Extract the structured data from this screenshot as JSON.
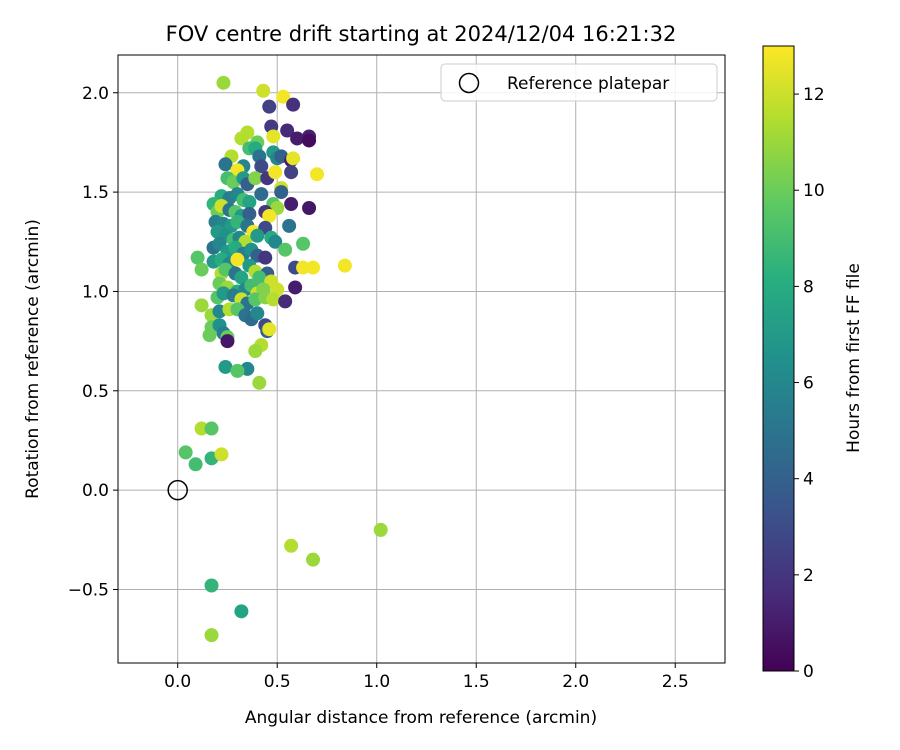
{
  "chart_data": {
    "type": "scatter",
    "title": "FOV centre drift starting at 2024/12/04 16:21:32",
    "xlabel": "Angular distance from reference (arcmin)",
    "ylabel": "Rotation from reference (arcmin)",
    "xlim": [
      -0.3,
      2.75
    ],
    "ylim": [
      -0.87,
      2.19
    ],
    "xticks": [
      0.0,
      0.5,
      1.0,
      1.5,
      2.0,
      2.5
    ],
    "xtick_labels": [
      "0.0",
      "0.5",
      "1.0",
      "1.5",
      "2.0",
      "2.5"
    ],
    "yticks": [
      -0.5,
      0.0,
      0.5,
      1.0,
      1.5,
      2.0
    ],
    "ytick_labels": [
      "−0.5",
      "0.0",
      "0.5",
      "1.0",
      "1.5",
      "2.0"
    ],
    "grid": true,
    "legend": {
      "placement": "upper right",
      "entries": [
        "Reference platepar"
      ]
    },
    "colorbar": {
      "label": "Hours from first FF file",
      "colormap": "viridis",
      "range": [
        0,
        13
      ],
      "ticks": [
        0,
        2,
        4,
        6,
        8,
        10,
        12
      ],
      "tick_labels": [
        "0",
        "2",
        "4",
        "6",
        "8",
        "10",
        "12"
      ]
    },
    "reference": {
      "x": 0.0,
      "y": 0.0
    },
    "series": [
      {
        "points": [
          [
            0.23,
            2.05,
            11.0
          ],
          [
            0.43,
            2.01,
            12.0
          ],
          [
            0.53,
            1.98,
            12.8
          ],
          [
            0.46,
            1.93,
            2.5
          ],
          [
            0.58,
            1.94,
            1.8
          ],
          [
            0.47,
            1.83,
            2.2
          ],
          [
            0.55,
            1.81,
            1.5
          ],
          [
            0.6,
            1.77,
            1.0
          ],
          [
            0.66,
            1.78,
            1.2
          ],
          [
            0.66,
            1.76,
            0.4
          ],
          [
            0.48,
            1.78,
            12.5
          ],
          [
            0.4,
            1.75,
            10.0
          ],
          [
            0.32,
            1.77,
            11.5
          ],
          [
            0.35,
            1.8,
            11.5
          ],
          [
            0.36,
            1.72,
            9.0
          ],
          [
            0.39,
            1.72,
            8.0
          ],
          [
            0.41,
            1.68,
            5.0
          ],
          [
            0.48,
            1.7,
            7.0
          ],
          [
            0.5,
            1.67,
            6.0
          ],
          [
            0.52,
            1.68,
            4.0
          ],
          [
            0.57,
            1.66,
            1.0
          ],
          [
            0.58,
            1.67,
            12.5
          ],
          [
            0.42,
            1.63,
            3.0
          ],
          [
            0.33,
            1.63,
            6.0
          ],
          [
            0.27,
            1.68,
            11.5
          ],
          [
            0.24,
            1.64,
            5.0
          ],
          [
            0.3,
            1.61,
            12.8
          ],
          [
            0.25,
            1.57,
            9.0
          ],
          [
            0.28,
            1.55,
            10.0
          ],
          [
            0.33,
            1.57,
            7.0
          ],
          [
            0.35,
            1.54,
            4.0
          ],
          [
            0.39,
            1.57,
            10.5
          ],
          [
            0.45,
            1.57,
            2.0
          ],
          [
            0.49,
            1.6,
            12.8
          ],
          [
            0.57,
            1.6,
            2.5
          ],
          [
            0.7,
            1.59,
            12.8
          ],
          [
            0.52,
            1.52,
            12.0
          ],
          [
            0.52,
            1.5,
            4.0
          ],
          [
            0.22,
            1.48,
            8.0
          ],
          [
            0.26,
            1.47,
            5.5
          ],
          [
            0.3,
            1.49,
            6.0
          ],
          [
            0.33,
            1.46,
            9.0
          ],
          [
            0.36,
            1.45,
            7.5
          ],
          [
            0.42,
            1.49,
            4.5
          ],
          [
            0.48,
            1.44,
            9.5
          ],
          [
            0.5,
            1.42,
            11.0
          ],
          [
            0.57,
            1.44,
            1.0
          ],
          [
            0.66,
            1.42,
            0.8
          ],
          [
            0.18,
            1.44,
            8.5
          ],
          [
            0.2,
            1.4,
            10.0
          ],
          [
            0.22,
            1.43,
            12.0
          ],
          [
            0.26,
            1.41,
            5.0
          ],
          [
            0.29,
            1.4,
            9.5
          ],
          [
            0.32,
            1.38,
            7.0
          ],
          [
            0.36,
            1.39,
            4.0
          ],
          [
            0.44,
            1.4,
            2.0
          ],
          [
            0.46,
            1.38,
            12.8
          ],
          [
            0.19,
            1.35,
            5.5
          ],
          [
            0.23,
            1.34,
            6.0
          ],
          [
            0.27,
            1.33,
            7.0
          ],
          [
            0.3,
            1.35,
            8.5
          ],
          [
            0.35,
            1.33,
            5.0
          ],
          [
            0.38,
            1.3,
            12.8
          ],
          [
            0.44,
            1.32,
            3.0
          ],
          [
            0.56,
            1.33,
            5.0
          ],
          [
            0.2,
            1.3,
            7.0
          ],
          [
            0.24,
            1.28,
            6.5
          ],
          [
            0.28,
            1.26,
            9.0
          ],
          [
            0.31,
            1.27,
            6.0
          ],
          [
            0.34,
            1.25,
            11.5
          ],
          [
            0.4,
            1.28,
            7.0
          ],
          [
            0.47,
            1.27,
            8.0
          ],
          [
            0.49,
            1.25,
            6.0
          ],
          [
            0.54,
            1.21,
            9.5
          ],
          [
            0.63,
            1.24,
            9.5
          ],
          [
            0.18,
            1.22,
            5.0
          ],
          [
            0.21,
            1.24,
            6.0
          ],
          [
            0.25,
            1.2,
            7.0
          ],
          [
            0.29,
            1.22,
            8.0
          ],
          [
            0.33,
            1.19,
            5.5
          ],
          [
            0.37,
            1.21,
            6.5
          ],
          [
            0.4,
            1.18,
            4.0
          ],
          [
            0.44,
            1.17,
            2.0
          ],
          [
            0.59,
            1.12,
            3.0
          ],
          [
            0.63,
            1.12,
            12.8
          ],
          [
            0.68,
            1.12,
            12.8
          ],
          [
            0.84,
            1.13,
            12.8
          ],
          [
            0.1,
            1.17,
            9.5
          ],
          [
            0.12,
            1.11,
            10.0
          ],
          [
            0.18,
            1.15,
            7.0
          ],
          [
            0.22,
            1.16,
            8.0
          ],
          [
            0.26,
            1.14,
            6.0
          ],
          [
            0.3,
            1.16,
            12.8
          ],
          [
            0.36,
            1.13,
            7.0
          ],
          [
            0.39,
            1.1,
            11.5
          ],
          [
            0.45,
            1.09,
            4.0
          ],
          [
            0.22,
            1.09,
            11.5
          ],
          [
            0.24,
            1.11,
            9.5
          ],
          [
            0.29,
            1.09,
            5.0
          ],
          [
            0.32,
            1.07,
            7.5
          ],
          [
            0.41,
            1.07,
            9.0
          ],
          [
            0.47,
            1.05,
            12.0
          ],
          [
            0.21,
            1.04,
            10.0
          ],
          [
            0.25,
            1.02,
            11.0
          ],
          [
            0.3,
            1.0,
            8.0
          ],
          [
            0.34,
            1.01,
            6.0
          ],
          [
            0.37,
            1.03,
            9.0
          ],
          [
            0.4,
            0.99,
            12.0
          ],
          [
            0.43,
            1.01,
            10.5
          ],
          [
            0.5,
            1.01,
            12.0
          ],
          [
            0.59,
            1.02,
            1.0
          ],
          [
            0.12,
            0.93,
            11.0
          ],
          [
            0.2,
            0.97,
            9.5
          ],
          [
            0.23,
            0.99,
            7.0
          ],
          [
            0.28,
            0.98,
            5.5
          ],
          [
            0.32,
            0.96,
            12.0
          ],
          [
            0.35,
            0.94,
            5.0
          ],
          [
            0.39,
            0.96,
            9.5
          ],
          [
            0.44,
            0.97,
            10.5
          ],
          [
            0.48,
            0.96,
            11.5
          ],
          [
            0.54,
            0.95,
            1.5
          ],
          [
            0.17,
            0.88,
            11.0
          ],
          [
            0.21,
            0.9,
            6.0
          ],
          [
            0.26,
            0.91,
            11.5
          ],
          [
            0.3,
            0.91,
            9.5
          ],
          [
            0.34,
            0.88,
            5.0
          ],
          [
            0.37,
            0.86,
            4.5
          ],
          [
            0.4,
            0.89,
            6.0
          ],
          [
            0.44,
            0.83,
            3.0
          ],
          [
            0.45,
            0.8,
            4.0
          ],
          [
            0.17,
            0.82,
            10.0
          ],
          [
            0.21,
            0.83,
            6.5
          ],
          [
            0.23,
            0.79,
            5.5
          ],
          [
            0.16,
            0.78,
            10.0
          ],
          [
            0.25,
            0.77,
            10.0
          ],
          [
            0.25,
            0.75,
            0.8
          ],
          [
            0.42,
            0.73,
            11.5
          ],
          [
            0.39,
            0.7,
            11.0
          ],
          [
            0.46,
            0.81,
            12.5
          ],
          [
            0.24,
            0.62,
            7.0
          ],
          [
            0.35,
            0.61,
            6.0
          ],
          [
            0.3,
            0.6,
            9.5
          ],
          [
            0.41,
            0.54,
            11.0
          ],
          [
            0.12,
            0.31,
            11.5
          ],
          [
            0.17,
            0.31,
            9.5
          ],
          [
            0.04,
            0.19,
            9.5
          ],
          [
            0.09,
            0.13,
            9.0
          ],
          [
            0.17,
            0.16,
            8.5
          ],
          [
            0.22,
            0.18,
            12.0
          ],
          [
            1.02,
            -0.2,
            11.0
          ],
          [
            0.57,
            -0.28,
            11.5
          ],
          [
            0.68,
            -0.35,
            11.0
          ],
          [
            0.17,
            -0.48,
            8.5
          ],
          [
            0.32,
            -0.61,
            7.5
          ],
          [
            0.17,
            -0.73,
            11.0
          ]
        ]
      }
    ]
  }
}
